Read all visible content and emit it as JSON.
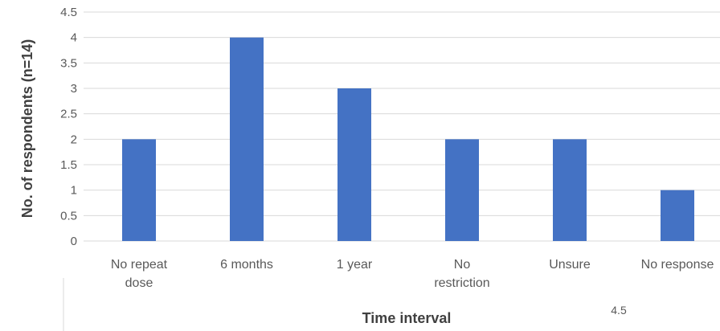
{
  "chart_data": {
    "type": "bar",
    "categories": [
      [
        "No repeat",
        "dose"
      ],
      [
        "6 months"
      ],
      [
        "1 year"
      ],
      [
        "No",
        "restriction"
      ],
      [
        "Unsure"
      ],
      [
        "No response"
      ]
    ],
    "values": [
      2,
      4,
      3,
      2,
      2,
      1
    ],
    "xlabel": "Time interval",
    "ylabel": "No. of respondents (n=14)",
    "ylim": [
      0,
      4.5
    ],
    "yticks": [
      "0",
      "0.5",
      "1",
      "1.5",
      "2",
      "2.5",
      "3",
      "3.5",
      "4",
      "4.5"
    ],
    "grid": true,
    "bar_color": "#4472C4",
    "grid_color": "#D9D9D9"
  },
  "footer_note": "4.5"
}
